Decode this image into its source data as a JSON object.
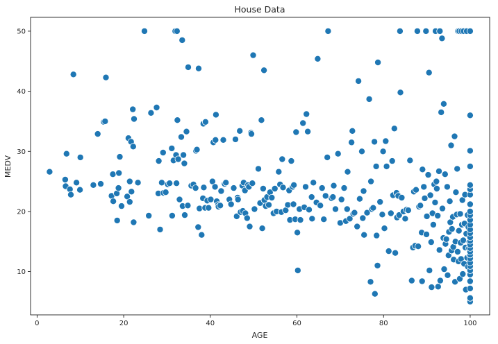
{
  "chart_data": {
    "type": "scatter",
    "title": "House Data",
    "xlabel": "AGE",
    "ylabel": "MEDV",
    "xlim": [
      -1.5,
      104.5
    ],
    "ylim": [
      2.8,
      52.3
    ],
    "xticks": [
      0,
      20,
      40,
      60,
      80,
      100
    ],
    "yticks": [
      10,
      20,
      30,
      40,
      50
    ],
    "grid": false,
    "marker_color": "#1f77b4",
    "marker_edge_color": "#ffffff",
    "points": [
      [
        2.9,
        26.6
      ],
      [
        6.5,
        25.3
      ],
      [
        6.6,
        24.2
      ],
      [
        6.8,
        29.6
      ],
      [
        7.6,
        23.7
      ],
      [
        7.8,
        22.8
      ],
      [
        8.4,
        42.8
      ],
      [
        9.1,
        24.8
      ],
      [
        9.9,
        23.6
      ],
      [
        10.0,
        29.0
      ],
      [
        13.0,
        24.4
      ],
      [
        14.0,
        32.9
      ],
      [
        14.7,
        24.6
      ],
      [
        15.4,
        34.9
      ],
      [
        15.7,
        35.0
      ],
      [
        15.9,
        42.3
      ],
      [
        17.2,
        22.6
      ],
      [
        17.5,
        26.2
      ],
      [
        17.6,
        21.7
      ],
      [
        18.4,
        23.0
      ],
      [
        18.5,
        18.5
      ],
      [
        18.8,
        23.9
      ],
      [
        18.9,
        26.4
      ],
      [
        19.1,
        29.1
      ],
      [
        19.5,
        20.9
      ],
      [
        20.8,
        22.5
      ],
      [
        21.1,
        32.2
      ],
      [
        21.4,
        25.0
      ],
      [
        21.4,
        21.6
      ],
      [
        21.7,
        31.6
      ],
      [
        21.8,
        23.3
      ],
      [
        22.1,
        37.0
      ],
      [
        22.2,
        30.8
      ],
      [
        22.3,
        18.2
      ],
      [
        22.4,
        35.4
      ],
      [
        23.3,
        24.8
      ],
      [
        24.8,
        50.0
      ],
      [
        25.8,
        19.3
      ],
      [
        26.3,
        36.4
      ],
      [
        27.6,
        37.3
      ],
      [
        28.0,
        23.0
      ],
      [
        28.1,
        28.4
      ],
      [
        28.4,
        17.0
      ],
      [
        28.8,
        24.8
      ],
      [
        29.1,
        29.8
      ],
      [
        29.2,
        23.1
      ],
      [
        29.7,
        23.2
      ],
      [
        30.2,
        24.5
      ],
      [
        30.6,
        24.7
      ],
      [
        31.1,
        30.5
      ],
      [
        31.2,
        19.3
      ],
      [
        31.5,
        28.5
      ],
      [
        31.9,
        50.0
      ],
      [
        32.1,
        29.4
      ],
      [
        32.2,
        24.7
      ],
      [
        32.3,
        50.0
      ],
      [
        32.4,
        35.2
      ],
      [
        32.6,
        28.7
      ],
      [
        32.9,
        22.0
      ],
      [
        33.3,
        32.4
      ],
      [
        33.5,
        48.5
      ],
      [
        33.6,
        20.9
      ],
      [
        33.8,
        29.4
      ],
      [
        34.0,
        28.0
      ],
      [
        34.1,
        19.4
      ],
      [
        34.5,
        33.3
      ],
      [
        34.8,
        21.0
      ],
      [
        34.9,
        44.0
      ],
      [
        35.6,
        24.3
      ],
      [
        36.1,
        24.5
      ],
      [
        36.6,
        23.9
      ],
      [
        36.7,
        30.1
      ],
      [
        36.9,
        30.3
      ],
      [
        37.2,
        17.4
      ],
      [
        37.3,
        43.8
      ],
      [
        37.5,
        20.5
      ],
      [
        38.0,
        16.1
      ],
      [
        38.3,
        22.2
      ],
      [
        38.4,
        34.6
      ],
      [
        38.5,
        24.0
      ],
      [
        38.8,
        20.6
      ],
      [
        38.9,
        34.9
      ],
      [
        39.3,
        21.8
      ],
      [
        39.6,
        20.6
      ],
      [
        40.1,
        22.0
      ],
      [
        40.5,
        25.0
      ],
      [
        40.7,
        31.5
      ],
      [
        41.1,
        24.1
      ],
      [
        41.2,
        31.9
      ],
      [
        41.3,
        36.1
      ],
      [
        41.5,
        21.7
      ],
      [
        41.8,
        21.1
      ],
      [
        41.9,
        20.8
      ],
      [
        42.3,
        21.0
      ],
      [
        42.5,
        23.4
      ],
      [
        43.0,
        31.9
      ],
      [
        43.3,
        24.6
      ],
      [
        43.6,
        24.8
      ],
      [
        44.4,
        22.0
      ],
      [
        44.8,
        21.2
      ],
      [
        45.4,
        23.9
      ],
      [
        45.8,
        32.0
      ],
      [
        46.1,
        19.2
      ],
      [
        46.3,
        22.3
      ],
      [
        46.4,
        22.0
      ],
      [
        46.8,
        33.4
      ],
      [
        47.0,
        19.9
      ],
      [
        47.4,
        24.3
      ],
      [
        47.5,
        20.1
      ],
      [
        47.7,
        24.8
      ],
      [
        48.0,
        23.5
      ],
      [
        48.1,
        19.7
      ],
      [
        48.5,
        18.9
      ],
      [
        48.7,
        24.4
      ],
      [
        48.9,
        24.1
      ],
      [
        49.1,
        17.5
      ],
      [
        49.4,
        33.1
      ],
      [
        49.5,
        32.9
      ],
      [
        49.7,
        24.7
      ],
      [
        49.9,
        46.0
      ],
      [
        50.2,
        20.4
      ],
      [
        51.1,
        27.1
      ],
      [
        51.5,
        21.4
      ],
      [
        51.8,
        35.2
      ],
      [
        52.0,
        17.2
      ],
      [
        52.2,
        23.8
      ],
      [
        52.4,
        43.5
      ],
      [
        52.5,
        21.9
      ],
      [
        52.8,
        20.9
      ],
      [
        53.1,
        22.4
      ],
      [
        53.5,
        21.1
      ],
      [
        53.8,
        23.2
      ],
      [
        54.2,
        22.3
      ],
      [
        54.6,
        19.7
      ],
      [
        54.9,
        23.8
      ],
      [
        55.3,
        20.0
      ],
      [
        55.8,
        26.6
      ],
      [
        56.1,
        24.5
      ],
      [
        56.4,
        19.9
      ],
      [
        56.6,
        28.7
      ],
      [
        56.8,
        24.0
      ],
      [
        57.4,
        20.2
      ],
      [
        57.9,
        21.1
      ],
      [
        58.2,
        23.5
      ],
      [
        58.4,
        18.6
      ],
      [
        58.7,
        28.4
      ],
      [
        59.0,
        24.1
      ],
      [
        59.2,
        21.2
      ],
      [
        59.3,
        24.4
      ],
      [
        59.6,
        18.7
      ],
      [
        59.8,
        33.2
      ],
      [
        60.1,
        16.5
      ],
      [
        60.2,
        10.2
      ],
      [
        60.6,
        20.4
      ],
      [
        60.8,
        18.6
      ],
      [
        61.4,
        34.7
      ],
      [
        61.7,
        20.7
      ],
      [
        62.0,
        24.1
      ],
      [
        62.2,
        36.2
      ],
      [
        62.5,
        33.3
      ],
      [
        62.8,
        20.3
      ],
      [
        63.4,
        22.4
      ],
      [
        63.5,
        18.8
      ],
      [
        63.8,
        24.8
      ],
      [
        64.5,
        21.5
      ],
      [
        64.8,
        45.4
      ],
      [
        65.4,
        21.0
      ],
      [
        65.8,
        23.9
      ],
      [
        66.2,
        18.7
      ],
      [
        66.6,
        22.6
      ],
      [
        67.0,
        29.0
      ],
      [
        67.2,
        50.0
      ],
      [
        68.0,
        22.2
      ],
      [
        68.3,
        22.4
      ],
      [
        68.5,
        24.3
      ],
      [
        68.9,
        20.4
      ],
      [
        69.5,
        29.6
      ],
      [
        70.0,
        18.1
      ],
      [
        70.3,
        22.0
      ],
      [
        70.9,
        23.9
      ],
      [
        71.3,
        18.4
      ],
      [
        71.6,
        20.4
      ],
      [
        71.7,
        26.6
      ],
      [
        72.2,
        18.8
      ],
      [
        72.6,
        31.5
      ],
      [
        72.8,
        33.4
      ],
      [
        73.0,
        19.6
      ],
      [
        73.3,
        19.8
      ],
      [
        73.9,
        17.5
      ],
      [
        74.2,
        41.7
      ],
      [
        74.5,
        22.1
      ],
      [
        75.0,
        30.0
      ],
      [
        75.2,
        18.9
      ],
      [
        75.4,
        23.4
      ],
      [
        75.5,
        16.1
      ],
      [
        76.2,
        19.8
      ],
      [
        76.7,
        38.7
      ],
      [
        77.0,
        8.3
      ],
      [
        77.1,
        25.0
      ],
      [
        77.3,
        20.4
      ],
      [
        77.6,
        20.6
      ],
      [
        77.9,
        31.6
      ],
      [
        78.0,
        6.3
      ],
      [
        78.3,
        27.5
      ],
      [
        78.4,
        16.0
      ],
      [
        78.6,
        11.0
      ],
      [
        78.7,
        44.8
      ],
      [
        79.2,
        21.6
      ],
      [
        79.7,
        19.5
      ],
      [
        79.9,
        30.0
      ],
      [
        80.2,
        17.2
      ],
      [
        80.5,
        31.7
      ],
      [
        80.7,
        27.5
      ],
      [
        81.2,
        13.4
      ],
      [
        81.7,
        19.7
      ],
      [
        82.0,
        28.4
      ],
      [
        82.2,
        22.7
      ],
      [
        82.5,
        33.8
      ],
      [
        82.7,
        13.1
      ],
      [
        83.0,
        23.1
      ],
      [
        83.1,
        19.0
      ],
      [
        83.4,
        22.6
      ],
      [
        83.6,
        19.4
      ],
      [
        83.8,
        50.0
      ],
      [
        83.9,
        39.8
      ],
      [
        84.2,
        22.3
      ],
      [
        84.6,
        20.0
      ],
      [
        85.0,
        18.8
      ],
      [
        85.3,
        20.3
      ],
      [
        85.7,
        20.2
      ],
      [
        86.1,
        28.5
      ],
      [
        86.5,
        8.5
      ],
      [
        86.8,
        14.0
      ],
      [
        87.0,
        23.3
      ],
      [
        87.3,
        14.3
      ],
      [
        87.5,
        23.6
      ],
      [
        87.8,
        50.0
      ],
      [
        88.0,
        14.2
      ],
      [
        88.2,
        20.8
      ],
      [
        88.5,
        21.0
      ],
      [
        88.8,
        16.5
      ],
      [
        88.9,
        8.4
      ],
      [
        89.0,
        27.0
      ],
      [
        89.3,
        24.1
      ],
      [
        89.5,
        22.2
      ],
      [
        89.8,
        50.0
      ],
      [
        89.9,
        16.2
      ],
      [
        90.0,
        19.2
      ],
      [
        90.3,
        26.1
      ],
      [
        90.5,
        43.1
      ],
      [
        90.6,
        10.2
      ],
      [
        90.8,
        22.7
      ],
      [
        91.0,
        14.9
      ],
      [
        91.1,
        7.4
      ],
      [
        91.3,
        19.7
      ],
      [
        91.5,
        17.8
      ],
      [
        91.7,
        24.5
      ],
      [
        91.9,
        21.5
      ],
      [
        92.0,
        50.0
      ],
      [
        92.2,
        25.0
      ],
      [
        92.3,
        23.8
      ],
      [
        92.5,
        19.3
      ],
      [
        92.6,
        7.5
      ],
      [
        92.8,
        26.7
      ],
      [
        92.9,
        13.6
      ],
      [
        93.0,
        50.0
      ],
      [
        93.1,
        8.5
      ],
      [
        93.3,
        36.5
      ],
      [
        93.5,
        48.8
      ],
      [
        93.6,
        20.5
      ],
      [
        93.8,
        15.6
      ],
      [
        93.9,
        37.9
      ],
      [
        94.0,
        10.4
      ],
      [
        94.2,
        26.2
      ],
      [
        94.3,
        14.6
      ],
      [
        94.5,
        15.4
      ],
      [
        94.7,
        24.1
      ],
      [
        94.8,
        9.4
      ],
      [
        95.0,
        12.7
      ],
      [
        95.1,
        16.6
      ],
      [
        95.3,
        21.7
      ],
      [
        95.4,
        18.2
      ],
      [
        95.6,
        31.0
      ],
      [
        95.7,
        13.5
      ],
      [
        95.8,
        17.1
      ],
      [
        96.0,
        19.1
      ],
      [
        96.1,
        14.1
      ],
      [
        96.2,
        12.0
      ],
      [
        96.4,
        32.5
      ],
      [
        96.5,
        8.3
      ],
      [
        96.6,
        15.0
      ],
      [
        96.7,
        23.2
      ],
      [
        96.9,
        19.5
      ],
      [
        97.0,
        27.1
      ],
      [
        97.1,
        13.3
      ],
      [
        97.2,
        50.0
      ],
      [
        97.3,
        11.7
      ],
      [
        97.4,
        16.8
      ],
      [
        97.5,
        50.0
      ],
      [
        97.6,
        8.8
      ],
      [
        97.7,
        19.6
      ],
      [
        97.8,
        14.8
      ],
      [
        97.9,
        12.1
      ],
      [
        98.0,
        50.0
      ],
      [
        98.1,
        17.8
      ],
      [
        98.2,
        21.9
      ],
      [
        98.3,
        9.6
      ],
      [
        98.4,
        15.2
      ],
      [
        98.5,
        50.0
      ],
      [
        98.6,
        11.3
      ],
      [
        98.7,
        18.0
      ],
      [
        98.8,
        22.8
      ],
      [
        98.9,
        14.0
      ],
      [
        99.0,
        7.0
      ],
      [
        99.1,
        16.3
      ],
      [
        99.2,
        50.0
      ],
      [
        99.3,
        12.3
      ],
      [
        99.4,
        19.4
      ],
      [
        99.5,
        10.8
      ],
      [
        99.6,
        17.4
      ],
      [
        99.7,
        13.9
      ],
      [
        99.8,
        15.0
      ],
      [
        99.9,
        12.7
      ],
      [
        100.0,
        50.0
      ],
      [
        100.0,
        5.0
      ],
      [
        100.0,
        5.6
      ],
      [
        100.0,
        7.2
      ],
      [
        100.0,
        8.4
      ],
      [
        100.0,
        9.5
      ],
      [
        100.0,
        10.2
      ],
      [
        100.0,
        10.9
      ],
      [
        100.0,
        11.5
      ],
      [
        100.0,
        12.2
      ],
      [
        100.0,
        12.8
      ],
      [
        100.0,
        13.3
      ],
      [
        100.0,
        13.9
      ],
      [
        100.0,
        14.5
      ],
      [
        100.0,
        15.1
      ],
      [
        100.0,
        15.7
      ],
      [
        100.0,
        16.4
      ],
      [
        100.0,
        17.0
      ],
      [
        100.0,
        17.8
      ],
      [
        100.0,
        18.6
      ],
      [
        100.0,
        19.4
      ],
      [
        100.0,
        20.0
      ],
      [
        100.0,
        21.2
      ],
      [
        100.0,
        22.8
      ],
      [
        100.0,
        23.7
      ],
      [
        100.0,
        24.4
      ],
      [
        100.0,
        27.5
      ],
      [
        100.0,
        30.1
      ],
      [
        100.0,
        36.0
      ]
    ]
  }
}
